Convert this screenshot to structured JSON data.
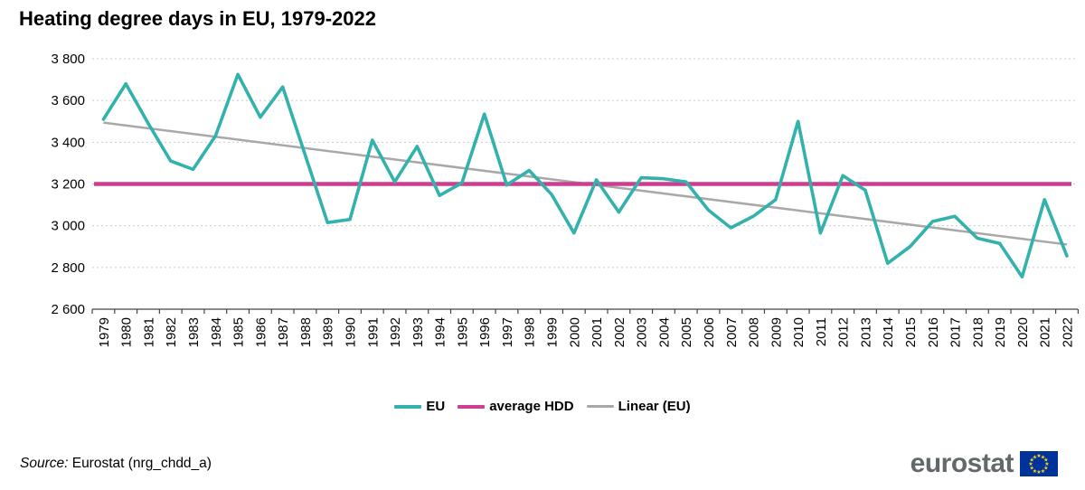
{
  "title": "Heating degree days in EU, 1979-2022",
  "chart_data": {
    "type": "line",
    "title": "Heating degree days in EU, 1979-2022",
    "xlabel": "",
    "ylabel": "",
    "ylim": [
      2600,
      3800
    ],
    "grid": true,
    "legend_position": "bottom",
    "x": [
      "1979",
      "1980",
      "1981",
      "1982",
      "1983",
      "1984",
      "1985",
      "1986",
      "1987",
      "1988",
      "1989",
      "1990",
      "1991",
      "1992",
      "1993",
      "1994",
      "1995",
      "1996",
      "1997",
      "1998",
      "1999",
      "2000",
      "2001",
      "2002",
      "2003",
      "2004",
      "2005",
      "2006",
      "2007",
      "2008",
      "2009",
      "2010",
      "2011",
      "2012",
      "2013",
      "2014",
      "2015",
      "2016",
      "2017",
      "2018",
      "2019",
      "2020",
      "2021",
      "2022"
    ],
    "series": [
      {
        "name": "EU",
        "kind": "data",
        "color": "#33B1AC",
        "values": [
          3510,
          3680,
          3490,
          3310,
          3270,
          3430,
          3725,
          3520,
          3665,
          3340,
          3015,
          3030,
          3410,
          3210,
          3380,
          3145,
          3205,
          3535,
          3195,
          3265,
          3150,
          2965,
          3220,
          3065,
          3230,
          3225,
          3210,
          3075,
          2990,
          3045,
          3125,
          3500,
          2965,
          3240,
          3170,
          2820,
          2900,
          3020,
          3045,
          2940,
          2915,
          2755,
          3125,
          2855
        ]
      },
      {
        "name": "average HDD",
        "kind": "constant",
        "color": "#CE3D8F",
        "value": 3200
      },
      {
        "name": "Linear (EU)",
        "kind": "trend",
        "color": "#A8A8A8",
        "start": 3494,
        "end": 2910
      }
    ],
    "y_ticks": [
      {
        "value": 3800,
        "label": "3 800"
      },
      {
        "value": 3600,
        "label": "3 600"
      },
      {
        "value": 3400,
        "label": "3 400"
      },
      {
        "value": 3200,
        "label": "3 200"
      },
      {
        "value": 3000,
        "label": "3 000"
      },
      {
        "value": 2800,
        "label": "2 800"
      },
      {
        "value": 2600,
        "label": "2 600"
      }
    ]
  },
  "legend": [
    {
      "label": "EU",
      "color": "#33B1AC",
      "thickness": 4
    },
    {
      "label": "average HDD",
      "color": "#CE3D8F",
      "thickness": 4
    },
    {
      "label": "Linear (EU)",
      "color": "#A8A8A8",
      "thickness": 2.5
    }
  ],
  "source": {
    "prefix": "Source:",
    "text": " Eurostat (nrg_chdd_a)"
  },
  "logo": {
    "text": "eurostat",
    "flag_blue": "#003399",
    "star_color": "#FFD617"
  },
  "colors": {
    "grid": "#CBCBCB",
    "axis": "#444444",
    "tick_label": "#000000"
  }
}
